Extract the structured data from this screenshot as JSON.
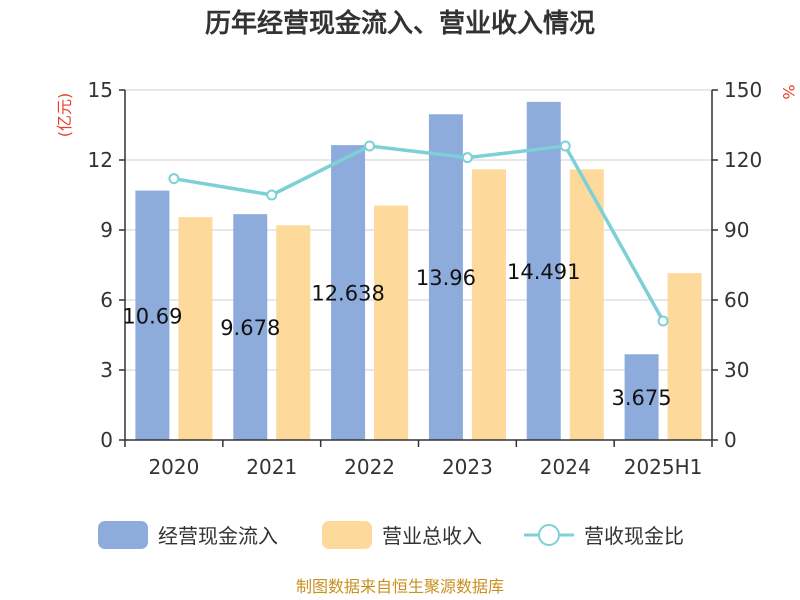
{
  "chart_data": {
    "type": "bar",
    "title": "历年经营现金流入、营业收入情况",
    "categories": [
      "2020",
      "2021",
      "2022",
      "2023",
      "2024",
      "2025H1"
    ],
    "y_left": {
      "unit": "(亿元)",
      "ylim": [
        0,
        15
      ],
      "ticks": [
        "0",
        "3",
        "6",
        "9",
        "12",
        "15"
      ]
    },
    "y_right": {
      "unit": "%",
      "ylim": [
        0,
        150
      ],
      "ticks": [
        "0",
        "30",
        "60",
        "90",
        "120",
        "150"
      ]
    },
    "series": [
      {
        "name": "经营现金流入",
        "kind": "bar",
        "axis": "left",
        "color": "#8eacdb",
        "values": [
          10.69,
          9.678,
          12.638,
          13.96,
          14.491,
          3.675
        ],
        "labels": [
          "10.69",
          "9.678",
          "12.638",
          "13.96",
          "14.491",
          "3.675"
        ]
      },
      {
        "name": "营业总收入",
        "kind": "bar",
        "axis": "left",
        "color": "#fdd99b",
        "values": [
          9.55,
          9.2,
          10.05,
          11.6,
          11.6,
          7.15
        ]
      },
      {
        "name": "营收现金比",
        "kind": "line",
        "axis": "right",
        "color": "#7dd0d6",
        "values": [
          112,
          105,
          126,
          121,
          126,
          51
        ]
      }
    ],
    "grid": true,
    "legend": "bottom",
    "source": "制图数据来自恒生聚源数据库"
  }
}
